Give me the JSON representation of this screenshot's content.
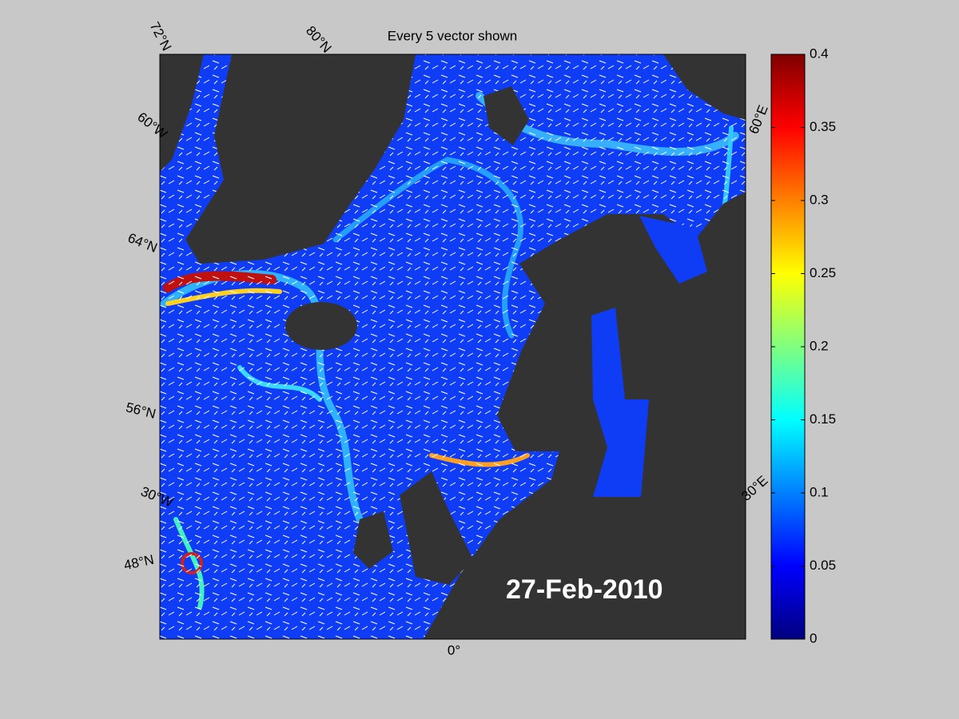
{
  "title": "Every 5 vector shown",
  "date": "27-Feb-2010",
  "graticule_labels": [
    "72°N",
    "80°N",
    "60°W",
    "64°N",
    "56°N",
    "30°W",
    "48°N",
    "0°",
    "30°E",
    "60°E"
  ],
  "colorbar": {
    "colormap": "jet",
    "lim": [
      0,
      0.4
    ],
    "ticks": [
      0,
      0.05,
      0.1,
      0.15,
      0.2,
      0.25,
      0.3,
      0.35,
      0.4
    ]
  }
}
